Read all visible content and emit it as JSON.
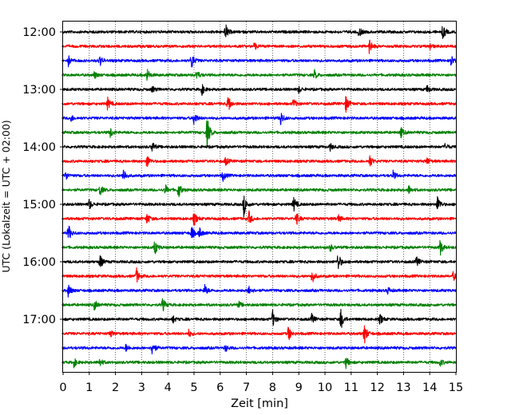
{
  "chart_data": {
    "type": "line",
    "title": "",
    "xlabel": "Zeit  [min]",
    "ylabel": "UTC (Lokalzeit = UTC + 02:00)",
    "xlim": [
      0,
      15
    ],
    "x_ticks": [
      "0",
      "1",
      "2",
      "3",
      "4",
      "5",
      "6",
      "7",
      "8",
      "9",
      "10",
      "11",
      "12",
      "13",
      "14",
      "15"
    ],
    "y_ticks": [
      "12:00",
      "13:00",
      "14:00",
      "15:00",
      "16:00",
      "17:00"
    ],
    "grid": "vertical dotted",
    "trace_interval_minutes": 15,
    "trace_colors": [
      "#000000",
      "#ff0000",
      "#0000ff",
      "#008000"
    ],
    "traces": [
      {
        "start": "12:00",
        "color": "#000000",
        "events": [
          [
            6.2,
            0.9
          ],
          [
            11.3,
            0.6
          ],
          [
            14.5,
            0.9
          ]
        ]
      },
      {
        "start": "12:15",
        "color": "#ff0000",
        "events": [
          [
            11.7,
            0.9
          ],
          [
            7.3,
            0.5
          ],
          [
            14.0,
            0.4
          ]
        ]
      },
      {
        "start": "12:30",
        "color": "#0000ff",
        "events": [
          [
            4.9,
            1.0
          ],
          [
            1.4,
            0.6
          ],
          [
            14.8,
            0.7
          ],
          [
            0.2,
            0.6
          ]
        ]
      },
      {
        "start": "12:45",
        "color": "#008000",
        "events": [
          [
            3.2,
            0.8
          ],
          [
            5.1,
            0.6
          ],
          [
            9.6,
            0.5
          ],
          [
            1.2,
            0.4
          ]
        ]
      },
      {
        "start": "13:00",
        "color": "#000000",
        "events": [
          [
            5.3,
            0.6
          ],
          [
            9.0,
            0.4
          ],
          [
            13.9,
            0.5
          ],
          [
            3.4,
            0.4
          ]
        ]
      },
      {
        "start": "13:15",
        "color": "#ff0000",
        "events": [
          [
            6.3,
            1.1
          ],
          [
            10.8,
            1.0
          ],
          [
            1.7,
            0.7
          ],
          [
            8.8,
            0.6
          ]
        ]
      },
      {
        "start": "13:30",
        "color": "#0000ff",
        "events": [
          [
            5.0,
            0.9
          ],
          [
            8.3,
            0.9
          ],
          [
            0.3,
            0.4
          ]
        ]
      },
      {
        "start": "13:45",
        "color": "#008000",
        "events": [
          [
            5.5,
            1.9
          ],
          [
            1.8,
            0.6
          ],
          [
            12.9,
            0.6
          ]
        ]
      },
      {
        "start": "14:00",
        "color": "#000000",
        "events": [
          [
            3.4,
            0.6
          ],
          [
            10.2,
            0.4
          ],
          [
            14.6,
            0.4
          ]
        ]
      },
      {
        "start": "14:15",
        "color": "#ff0000",
        "events": [
          [
            3.2,
            0.8
          ],
          [
            11.7,
            0.8
          ],
          [
            6.2,
            0.5
          ],
          [
            13.9,
            0.4
          ]
        ]
      },
      {
        "start": "14:30",
        "color": "#0000ff",
        "events": [
          [
            2.3,
            0.9
          ],
          [
            6.1,
            0.6
          ],
          [
            12.6,
            0.5
          ],
          [
            0.1,
            0.5
          ]
        ]
      },
      {
        "start": "14:45",
        "color": "#008000",
        "events": [
          [
            4.4,
            1.0
          ],
          [
            1.4,
            0.7
          ],
          [
            3.9,
            0.6
          ],
          [
            13.2,
            0.5
          ]
        ]
      },
      {
        "start": "15:00",
        "color": "#000000",
        "events": [
          [
            6.9,
            1.3
          ],
          [
            8.8,
            0.9
          ],
          [
            14.3,
            1.0
          ],
          [
            1.0,
            0.6
          ]
        ]
      },
      {
        "start": "15:15",
        "color": "#ff0000",
        "events": [
          [
            3.2,
            0.7
          ],
          [
            5.0,
            0.8
          ],
          [
            7.1,
            0.8
          ],
          [
            8.9,
            0.8
          ],
          [
            10.5,
            0.5
          ]
        ]
      },
      {
        "start": "15:30",
        "color": "#0000ff",
        "events": [
          [
            0.2,
            1.0
          ],
          [
            4.9,
            0.8
          ],
          [
            5.2,
            0.6
          ]
        ]
      },
      {
        "start": "15:45",
        "color": "#008000",
        "events": [
          [
            3.5,
            0.9
          ],
          [
            14.4,
            0.9
          ],
          [
            10.2,
            0.4
          ]
        ]
      },
      {
        "start": "16:00",
        "color": "#000000",
        "events": [
          [
            1.4,
            0.9
          ],
          [
            10.5,
            1.1
          ],
          [
            13.5,
            0.6
          ]
        ]
      },
      {
        "start": "16:15",
        "color": "#ff0000",
        "events": [
          [
            2.8,
            0.9
          ],
          [
            9.5,
            0.9
          ],
          [
            14.9,
            0.5
          ]
        ]
      },
      {
        "start": "16:30",
        "color": "#0000ff",
        "events": [
          [
            0.2,
            0.8
          ],
          [
            5.4,
            0.7
          ],
          [
            7.1,
            0.7
          ],
          [
            12.4,
            0.4
          ]
        ]
      },
      {
        "start": "16:45",
        "color": "#008000",
        "events": [
          [
            1.2,
            0.6
          ],
          [
            3.8,
            0.8
          ],
          [
            6.7,
            0.4
          ]
        ]
      },
      {
        "start": "17:00",
        "color": "#000000",
        "events": [
          [
            8.0,
            1.0
          ],
          [
            10.6,
            1.3
          ],
          [
            9.5,
            0.6
          ],
          [
            12.1,
            0.6
          ],
          [
            4.2,
            0.4
          ]
        ]
      },
      {
        "start": "17:15",
        "color": "#ff0000",
        "events": [
          [
            8.6,
            0.9
          ],
          [
            11.5,
            1.3
          ],
          [
            1.8,
            0.4
          ],
          [
            4.8,
            0.4
          ]
        ]
      },
      {
        "start": "17:30",
        "color": "#0000ff",
        "events": [
          [
            3.4,
            0.9
          ],
          [
            2.4,
            0.4
          ],
          [
            6.2,
            0.4
          ]
        ]
      },
      {
        "start": "17:45",
        "color": "#008000",
        "events": [
          [
            0.4,
            0.6
          ],
          [
            1.4,
            0.5
          ],
          [
            10.8,
            0.7
          ],
          [
            14.4,
            0.4
          ]
        ]
      }
    ]
  }
}
